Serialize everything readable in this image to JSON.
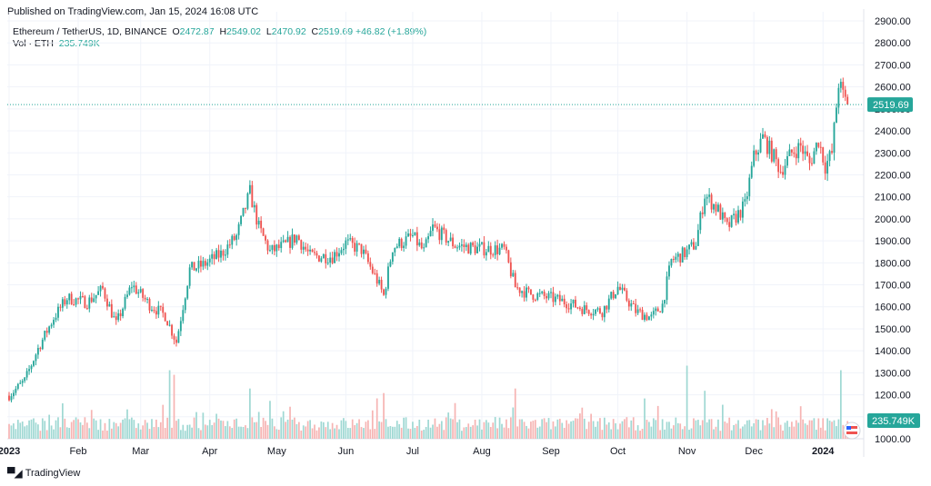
{
  "header": {
    "published": "Published on TradingView.com, Jan 15, 2024 16:08 UTC",
    "symbol": "Ethereum / TetherUS, 1D, BINANCE",
    "open_label": "O",
    "open_value": "2472.87",
    "high_label": "H",
    "high_value": "2549.02",
    "low_label": "L",
    "low_value": "2470.92",
    "close_label": "C",
    "close_value": "2519.69",
    "change": "+46.82 (+1.89%)",
    "vol_label": "Vol · ETH",
    "vol_value": "235.749K"
  },
  "footer": {
    "logo_text": "TradingView",
    "logo_icon": "tradingview-logo-icon"
  },
  "colors": {
    "up": "#26a69a",
    "down": "#ef5350",
    "up_vol": "#9fd8d3",
    "down_vol": "#f6b4b3",
    "grid": "#f0f3fa",
    "axis_text": "#131722"
  },
  "chart_data": {
    "type": "candlestick",
    "title": "Ethereum / TetherUS, 1D, BINANCE",
    "ylim": [
      1000,
      2900
    ],
    "y_ticks": [
      1000,
      1100,
      1200,
      1300,
      1400,
      1500,
      1600,
      1700,
      1800,
      1900,
      2000,
      2100,
      2200,
      2300,
      2400,
      2500,
      2600,
      2700,
      2800,
      2900
    ],
    "y_tick_labels": [
      "1000.00",
      "1100.00",
      "1200.00",
      "1300.00",
      "1400.00",
      "1500.00",
      "1600.00",
      "1700.00",
      "1800.00",
      "1900.00",
      "2000.00",
      "2100.00",
      "2200.00",
      "2300.00",
      "2400.00",
      "2500.00",
      "2600.00",
      "2700.00",
      "2800.00",
      "2900.00"
    ],
    "x_tick_labels": [
      "2023",
      "Feb",
      "Mar",
      "Apr",
      "May",
      "Jun",
      "Jul",
      "Aug",
      "Sep",
      "Oct",
      "Nov",
      "Dec",
      "2024"
    ],
    "x_tick_days": [
      0,
      31,
      59,
      90,
      120,
      151,
      181,
      212,
      243,
      273,
      304,
      334,
      365
    ],
    "total_days": 380,
    "last_price": 2519.69,
    "last_price_label": "2519.69",
    "last_volume_label": "235.749K",
    "anchors": [
      {
        "day": 0,
        "price": 1196
      },
      {
        "day": 7,
        "price": 1265
      },
      {
        "day": 13,
        "price": 1410
      },
      {
        "day": 20,
        "price": 1550
      },
      {
        "day": 26,
        "price": 1640
      },
      {
        "day": 35,
        "price": 1620
      },
      {
        "day": 42,
        "price": 1680
      },
      {
        "day": 48,
        "price": 1520
      },
      {
        "day": 55,
        "price": 1700
      },
      {
        "day": 63,
        "price": 1610
      },
      {
        "day": 70,
        "price": 1560
      },
      {
        "day": 75,
        "price": 1440
      },
      {
        "day": 81,
        "price": 1770
      },
      {
        "day": 87,
        "price": 1790
      },
      {
        "day": 95,
        "price": 1840
      },
      {
        "day": 102,
        "price": 1920
      },
      {
        "day": 108,
        "price": 2120
      },
      {
        "day": 112,
        "price": 1960
      },
      {
        "day": 117,
        "price": 1850
      },
      {
        "day": 124,
        "price": 1880
      },
      {
        "day": 129,
        "price": 1920
      },
      {
        "day": 135,
        "price": 1830
      },
      {
        "day": 145,
        "price": 1830
      },
      {
        "day": 151,
        "price": 1890
      },
      {
        "day": 158,
        "price": 1860
      },
      {
        "day": 165,
        "price": 1720
      },
      {
        "day": 168,
        "price": 1650
      },
      {
        "day": 172,
        "price": 1870
      },
      {
        "day": 181,
        "price": 1920
      },
      {
        "day": 186,
        "price": 1850
      },
      {
        "day": 190,
        "price": 1960
      },
      {
        "day": 200,
        "price": 1880
      },
      {
        "day": 210,
        "price": 1865
      },
      {
        "day": 222,
        "price": 1860
      },
      {
        "day": 227,
        "price": 1690
      },
      {
        "day": 233,
        "price": 1660
      },
      {
        "day": 243,
        "price": 1640
      },
      {
        "day": 250,
        "price": 1620
      },
      {
        "day": 258,
        "price": 1590
      },
      {
        "day": 266,
        "price": 1580
      },
      {
        "day": 273,
        "price": 1690
      },
      {
        "day": 281,
        "price": 1580
      },
      {
        "day": 288,
        "price": 1550
      },
      {
        "day": 293,
        "price": 1610
      },
      {
        "day": 297,
        "price": 1810
      },
      {
        "day": 304,
        "price": 1850
      },
      {
        "day": 308,
        "price": 1890
      },
      {
        "day": 312,
        "price": 2110
      },
      {
        "day": 318,
        "price": 2040
      },
      {
        "day": 322,
        "price": 1960
      },
      {
        "day": 330,
        "price": 2060
      },
      {
        "day": 334,
        "price": 2280
      },
      {
        "day": 338,
        "price": 2370
      },
      {
        "day": 343,
        "price": 2280
      },
      {
        "day": 346,
        "price": 2220
      },
      {
        "day": 351,
        "price": 2300
      },
      {
        "day": 355,
        "price": 2330
      },
      {
        "day": 359,
        "price": 2250
      },
      {
        "day": 363,
        "price": 2360
      },
      {
        "day": 366,
        "price": 2240
      },
      {
        "day": 369,
        "price": 2300
      },
      {
        "day": 372,
        "price": 2620
      },
      {
        "day": 374,
        "price": 2560
      },
      {
        "day": 376,
        "price": 2520
      }
    ],
    "volume_spikes": [
      {
        "day": 72,
        "value": 3.0
      },
      {
        "day": 74,
        "value": 2.8
      },
      {
        "day": 227,
        "value": 2.2
      },
      {
        "day": 304,
        "value": 3.2
      },
      {
        "day": 373,
        "value": 3.0
      },
      {
        "day": 108,
        "value": 2.2
      },
      {
        "day": 168,
        "value": 2.0
      },
      {
        "day": 312,
        "value": 2.1
      }
    ]
  }
}
